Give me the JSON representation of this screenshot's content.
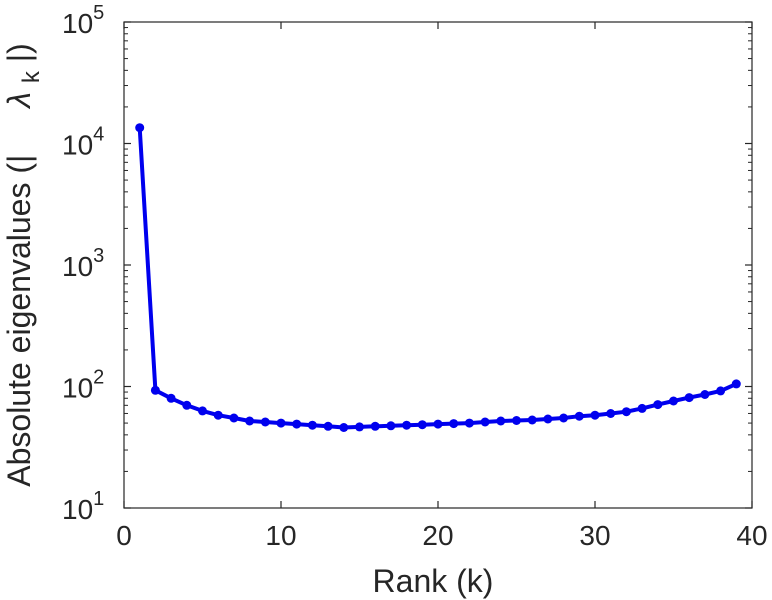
{
  "chart_data": {
    "type": "line",
    "title": "",
    "xlabel": "Rank (k)",
    "ylabel": "Absolute eigenvalues (|λk|)",
    "ylabel_parts": {
      "prefix": "Absolute eigenvalues (|",
      "symbol": "λ",
      "subscript": "k",
      "suffix": "|)"
    },
    "xlim": [
      0,
      40
    ],
    "ylim": [
      10,
      100000
    ],
    "yscale": "log",
    "grid": false,
    "box": true,
    "line_color": "#0000ee",
    "x_ticks": [
      0,
      10,
      20,
      30,
      40
    ],
    "x_tick_labels": [
      "0",
      "10",
      "20",
      "30",
      "40"
    ],
    "y_ticks": [
      10,
      100,
      1000,
      10000,
      100000
    ],
    "y_tick_labels": [
      {
        "base": "10",
        "exp": "1"
      },
      {
        "base": "10",
        "exp": "2"
      },
      {
        "base": "10",
        "exp": "3"
      },
      {
        "base": "10",
        "exp": "4"
      },
      {
        "base": "10",
        "exp": "5"
      }
    ],
    "series": [
      {
        "x": [
          1,
          2,
          3,
          4,
          5,
          6,
          7,
          8,
          9,
          10,
          11,
          12,
          13,
          14,
          15,
          16,
          17,
          18,
          19,
          20,
          21,
          22,
          23,
          24,
          25,
          26,
          27,
          28,
          29,
          30,
          31,
          32,
          33,
          34,
          35,
          36,
          37,
          38,
          39
        ],
        "y": [
          13500,
          93,
          80,
          70,
          63,
          58,
          55,
          52,
          51,
          50,
          49,
          48,
          47,
          46,
          46.5,
          47,
          47.5,
          48,
          48.5,
          49,
          49.5,
          50,
          51,
          52,
          52.5,
          53,
          54,
          55,
          57,
          58,
          60,
          62,
          66,
          71,
          76,
          81,
          86,
          92,
          105
        ]
      }
    ]
  }
}
